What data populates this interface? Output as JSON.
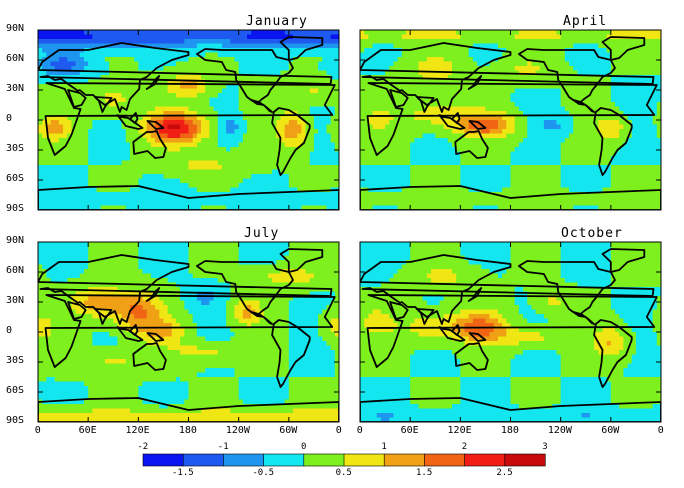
{
  "panels": [
    {
      "title": "January"
    },
    {
      "title": "April"
    },
    {
      "title": "July"
    },
    {
      "title": "October"
    }
  ],
  "lat_labels": [
    "90N",
    "60N",
    "30N",
    "0",
    "30S",
    "60S",
    "90S"
  ],
  "lon_labels": [
    "0",
    "60E",
    "120E",
    "180",
    "120W",
    "60W",
    "0"
  ],
  "colorbar": {
    "upper_labels": [
      "-2",
      "-1",
      "0",
      "1",
      "2",
      "3"
    ],
    "lower_labels": [
      "-1.5",
      "-0.5",
      "0.5",
      "1.5",
      "2.5"
    ],
    "colors": [
      "#0a14f0",
      "#1e5af0",
      "#1e96f0",
      "#14e6f0",
      "#7ef01e",
      "#f0e614",
      "#f0a014",
      "#f06414",
      "#f01e14",
      "#c80a0a"
    ]
  },
  "fields": {
    "January": {
      "base": 0,
      "blobs": [
        {
          "lon": 165,
          "lat": -8,
          "value": 2.5,
          "w": 35,
          "h": 16
        },
        {
          "lon": 20,
          "lat": -8,
          "value": 1.2,
          "w": 20,
          "h": 12
        },
        {
          "lon": 305,
          "lat": -10,
          "value": 1.4,
          "w": 18,
          "h": 18
        },
        {
          "lon": 180,
          "lat": 35,
          "value": 1.2,
          "w": 25,
          "h": 12
        },
        {
          "lon": 90,
          "lat": 20,
          "value": 0.7,
          "w": 30,
          "h": 15
        },
        {
          "lon": 30,
          "lat": 55,
          "value": -1.2,
          "w": 30,
          "h": 12
        },
        {
          "lon": 0,
          "lat": 85,
          "value": -1.6,
          "w": 360,
          "h": 12
        },
        {
          "lon": 230,
          "lat": -8,
          "value": -0.8,
          "w": 12,
          "h": 10
        },
        {
          "lon": 200,
          "lat": -45,
          "value": 0.6,
          "w": 50,
          "h": 10
        },
        {
          "lon": 330,
          "lat": 30,
          "value": 0.6,
          "w": 25,
          "h": 12
        },
        {
          "lon": 0,
          "lat": -80,
          "value": -0.3,
          "w": 360,
          "h": 8
        }
      ]
    },
    "April": {
      "base": 0,
      "blobs": [
        {
          "lon": 150,
          "lat": -5,
          "value": 1.8,
          "w": 35,
          "h": 12
        },
        {
          "lon": 90,
          "lat": 5,
          "value": 0.8,
          "w": 40,
          "h": 14
        },
        {
          "lon": 300,
          "lat": -8,
          "value": 1.0,
          "w": 18,
          "h": 12
        },
        {
          "lon": 90,
          "lat": 50,
          "value": 0.8,
          "w": 30,
          "h": 15
        },
        {
          "lon": 200,
          "lat": 50,
          "value": 0.6,
          "w": 30,
          "h": 12
        },
        {
          "lon": 20,
          "lat": 0,
          "value": 0.6,
          "w": 18,
          "h": 12
        },
        {
          "lon": 230,
          "lat": -5,
          "value": -0.6,
          "w": 20,
          "h": 10
        },
        {
          "lon": 0,
          "lat": 85,
          "value": 0.6,
          "w": 360,
          "h": 8
        },
        {
          "lon": 0,
          "lat": -80,
          "value": 0.3,
          "w": 360,
          "h": 8
        }
      ]
    },
    "July": {
      "base": 0,
      "blobs": [
        {
          "lon": 120,
          "lat": 20,
          "value": 1.6,
          "w": 30,
          "h": 20
        },
        {
          "lon": 70,
          "lat": 30,
          "value": 1.2,
          "w": 30,
          "h": 15
        },
        {
          "lon": 250,
          "lat": 20,
          "value": 1.1,
          "w": 18,
          "h": 14
        },
        {
          "lon": 150,
          "lat": 0,
          "value": 1.0,
          "w": 25,
          "h": 12
        },
        {
          "lon": 0,
          "lat": 5,
          "value": 0.8,
          "w": 20,
          "h": 14
        },
        {
          "lon": 300,
          "lat": 55,
          "value": 0.8,
          "w": 40,
          "h": 10
        },
        {
          "lon": 200,
          "lat": 35,
          "value": -0.6,
          "w": 20,
          "h": 12
        },
        {
          "lon": 90,
          "lat": -30,
          "value": 0.6,
          "w": 50,
          "h": 12
        },
        {
          "lon": 200,
          "lat": -20,
          "value": 0.7,
          "w": 40,
          "h": 10
        },
        {
          "lon": 0,
          "lat": -85,
          "value": 0.9,
          "w": 360,
          "h": 8
        }
      ]
    },
    "October": {
      "base": 0,
      "blobs": [
        {
          "lon": 145,
          "lat": 5,
          "value": 1.6,
          "w": 30,
          "h": 15
        },
        {
          "lon": 90,
          "lat": 5,
          "value": 0.9,
          "w": 40,
          "h": 15
        },
        {
          "lon": 200,
          "lat": -5,
          "value": 0.8,
          "w": 40,
          "h": 10
        },
        {
          "lon": 300,
          "lat": -10,
          "value": 1.0,
          "w": 22,
          "h": 16
        },
        {
          "lon": 20,
          "lat": 10,
          "value": 0.7,
          "w": 20,
          "h": 14
        },
        {
          "lon": 230,
          "lat": 30,
          "value": 0.6,
          "w": 20,
          "h": 12
        },
        {
          "lon": 100,
          "lat": 55,
          "value": 0.6,
          "w": 40,
          "h": 12
        },
        {
          "lon": 0,
          "lat": -85,
          "value": -0.4,
          "w": 360,
          "h": 8
        }
      ]
    }
  }
}
